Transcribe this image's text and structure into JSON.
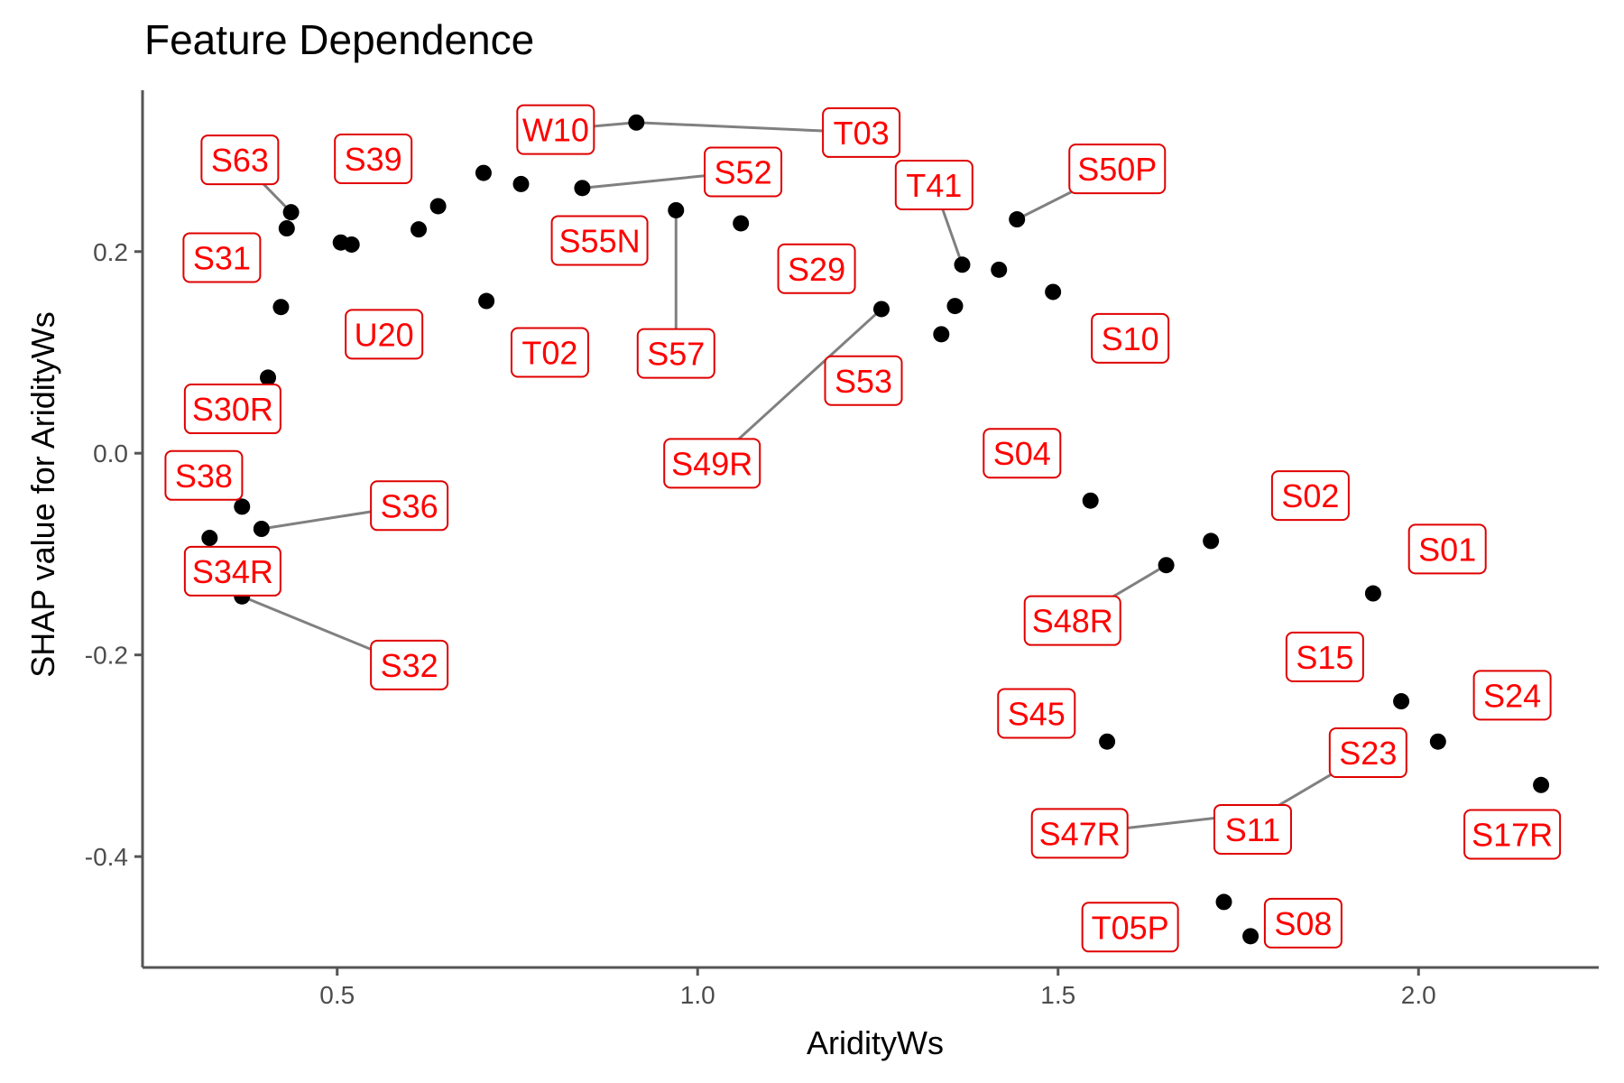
{
  "chart_data": {
    "type": "scatter",
    "title": "Feature Dependence",
    "xlabel": "AridityWs",
    "ylabel": "SHAP value for AridityWs",
    "xlim": [
      0.23,
      2.25
    ],
    "ylim": [
      -0.51,
      0.36
    ],
    "xticks": [
      0.5,
      1.0,
      1.5,
      2.0
    ],
    "xtick_labels": [
      "0.5",
      "1.0",
      "1.5",
      "2.0"
    ],
    "yticks": [
      -0.4,
      -0.2,
      0.0,
      0.2
    ],
    "ytick_labels": [
      "-0.4",
      "-0.2",
      "0.0",
      "0.2"
    ],
    "grid": false,
    "label_color": "#ff0000",
    "point_color": "#000000",
    "points": [
      {
        "label": "S63",
        "x": 0.436,
        "y": 0.239,
        "lx": 0.365,
        "ly": 0.291
      },
      {
        "label": "S39",
        "x": 0.43,
        "y": 0.223,
        "lx": 0.55,
        "ly": 0.292
      },
      {
        "label": "W10",
        "x": 0.915,
        "y": 0.328,
        "lx": 0.803,
        "ly": 0.321
      },
      {
        "label": "T03",
        "x": 0.915,
        "y": 0.328,
        "lx": 1.227,
        "ly": 0.318
      },
      {
        "label": "S52",
        "x": 0.84,
        "y": 0.263,
        "lx": 1.063,
        "ly": 0.279
      },
      {
        "label": "T41",
        "x": 1.367,
        "y": 0.187,
        "lx": 1.328,
        "ly": 0.266
      },
      {
        "label": "S50P",
        "x": 1.443,
        "y": 0.232,
        "lx": 1.582,
        "ly": 0.282
      },
      {
        "label": "S55N",
        "x": 0.703,
        "y": 0.278,
        "lx": 0.864,
        "ly": 0.211
      },
      {
        "label": "S31",
        "x": 0.422,
        "y": 0.145,
        "lx": 0.34,
        "ly": 0.194
      },
      {
        "label": "S29",
        "x": 1.06,
        "y": 0.228,
        "lx": 1.165,
        "ly": 0.183
      },
      {
        "label": "U20",
        "x": 0.52,
        "y": 0.207,
        "lx": 0.565,
        "ly": 0.118
      },
      {
        "label": "T02",
        "x": 0.707,
        "y": 0.151,
        "lx": 0.795,
        "ly": 0.1
      },
      {
        "label": "S57",
        "x": 0.97,
        "y": 0.241,
        "lx": 0.97,
        "ly": 0.099
      },
      {
        "label": "S10",
        "x": 1.493,
        "y": 0.16,
        "lx": 1.6,
        "ly": 0.114
      },
      {
        "label": "S53",
        "x": 1.255,
        "y": 0.143,
        "lx": 1.23,
        "ly": 0.072
      },
      {
        "label": "S30R",
        "x": 0.404,
        "y": 0.075,
        "lx": 0.355,
        "ly": 0.044
      },
      {
        "label": "S49R",
        "x": 1.255,
        "y": 0.143,
        "lx": 1.02,
        "ly": -0.01
      },
      {
        "label": "S04",
        "x": 1.545,
        "y": -0.047,
        "lx": 1.45,
        "ly": 0.0
      },
      {
        "label": "S38",
        "x": 0.368,
        "y": -0.053,
        "lx": 0.315,
        "ly": -0.022
      },
      {
        "label": "S36",
        "x": 0.395,
        "y": -0.075,
        "lx": 0.6,
        "ly": -0.052
      },
      {
        "label": "S02",
        "x": 1.712,
        "y": -0.087,
        "lx": 1.85,
        "ly": -0.042
      },
      {
        "label": "S01",
        "x": 1.937,
        "y": -0.139,
        "lx": 2.04,
        "ly": -0.095
      },
      {
        "label": "S34R",
        "x": 0.323,
        "y": -0.084,
        "lx": 0.355,
        "ly": -0.117
      },
      {
        "label": "S48R",
        "x": 1.65,
        "y": -0.111,
        "lx": 1.52,
        "ly": -0.166
      },
      {
        "label": "S15",
        "x": 1.976,
        "y": -0.246,
        "lx": 1.87,
        "ly": -0.202
      },
      {
        "label": "S32",
        "x": 0.368,
        "y": -0.142,
        "lx": 0.6,
        "ly": -0.21
      },
      {
        "label": "S24",
        "x": 2.027,
        "y": -0.286,
        "lx": 2.13,
        "ly": -0.24
      },
      {
        "label": "S45",
        "x": 1.568,
        "y": -0.286,
        "lx": 1.47,
        "ly": -0.258
      },
      {
        "label": "S23",
        "x": 1.79,
        "y": -0.356,
        "lx": 1.93,
        "ly": -0.297
      },
      {
        "label": "S11",
        "x": 1.79,
        "y": -0.356,
        "lx": 1.77,
        "ly": -0.373
      },
      {
        "label": "S47R",
        "x": 1.79,
        "y": -0.356,
        "lx": 1.53,
        "ly": -0.377
      },
      {
        "label": "S17R",
        "x": 2.17,
        "y": -0.329,
        "lx": 2.13,
        "ly": -0.378
      },
      {
        "label": "T05P",
        "x": 1.73,
        "y": -0.445,
        "lx": 1.6,
        "ly": -0.47
      },
      {
        "label": "S08",
        "x": 1.767,
        "y": -0.479,
        "lx": 1.84,
        "ly": -0.466
      }
    ],
    "extra_points": [
      {
        "x": 0.505,
        "y": 0.209
      },
      {
        "x": 0.613,
        "y": 0.222
      },
      {
        "x": 0.64,
        "y": 0.245
      },
      {
        "x": 0.755,
        "y": 0.267
      },
      {
        "x": 1.338,
        "y": 0.118
      },
      {
        "x": 1.357,
        "y": 0.146
      },
      {
        "x": 1.418,
        "y": 0.182
      }
    ],
    "segments": [
      "S63",
      "W10",
      "T03",
      "S52",
      "T41",
      "S50P",
      "S57",
      "S49R",
      "S36",
      "S48R",
      "S32",
      "S23",
      "S47R"
    ]
  }
}
